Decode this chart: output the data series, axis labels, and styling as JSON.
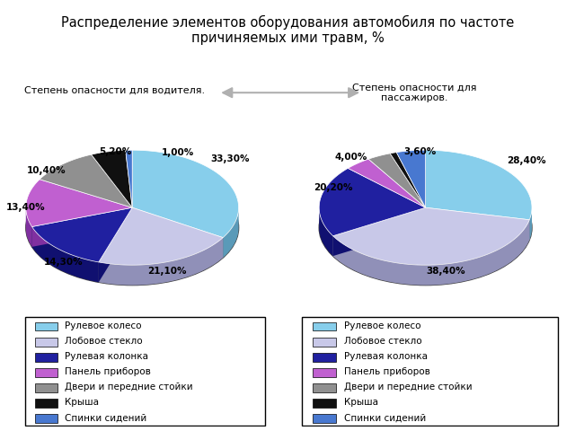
{
  "title": "Распределение элементов оборудования автомобиля по частоте\nпричиняемых ими травм, %",
  "left_label": "Степень опасности для водителя.",
  "right_label": "Степень опасности для\nпассажиров.",
  "categories": [
    "Рулевое колесо",
    "Лобовое стекло",
    "Рулевая колонка",
    "Панель приборов",
    "Двери и передние стойки",
    "Крыша",
    "Спинки сидений"
  ],
  "colors_top": [
    "#87ceeb",
    "#c8c8e8",
    "#2020a0",
    "#c060d0",
    "#909090",
    "#101010",
    "#4878d0"
  ],
  "colors_side": [
    "#5a9ab8",
    "#9090b8",
    "#101070",
    "#8030a0",
    "#606060",
    "#000000",
    "#2050a0"
  ],
  "driver_values": [
    33.3,
    21.1,
    14.3,
    13.4,
    10.4,
    5.2,
    1.0
  ],
  "driver_labels": [
    "33,30%",
    "21,10%",
    "14,30%",
    "13,40%",
    "10,40%",
    "5,20%",
    "1,00%"
  ],
  "passenger_values": [
    28.4,
    38.4,
    20.2,
    4.0,
    3.6,
    1.0,
    4.4
  ],
  "passenger_labels": [
    "28,40%",
    "38,40%",
    "20,20%",
    "4,00%",
    "3,60%",
    "",
    ""
  ],
  "background": "#ffffff"
}
